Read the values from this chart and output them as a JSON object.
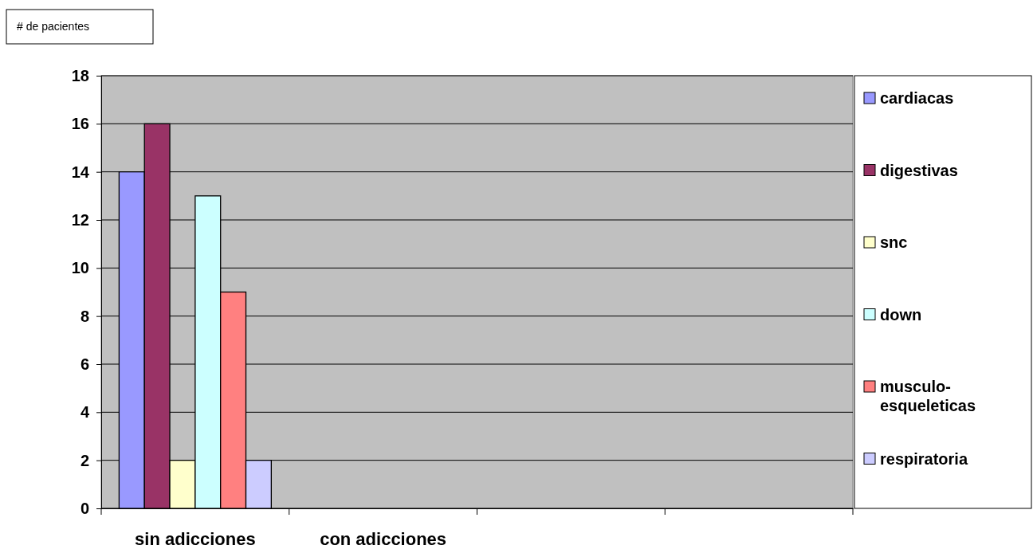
{
  "chart_data": {
    "type": "bar",
    "ylabel": "# de pacientes",
    "categories": [
      "sin adicciones",
      "con adicciones",
      null,
      null
    ],
    "series": [
      {
        "name": "cardiacas",
        "color": "#9999ff",
        "values": [
          14,
          null,
          null,
          null
        ]
      },
      {
        "name": "digestivas",
        "color": "#993366",
        "values": [
          16,
          null,
          null,
          null
        ]
      },
      {
        "name": "snc",
        "color": "#ffffcc",
        "values": [
          2,
          null,
          null,
          null
        ]
      },
      {
        "name": "down",
        "color": "#ccffff",
        "values": [
          13,
          null,
          null,
          null
        ]
      },
      {
        "name": "musculo-esqueleticas",
        "color": "#ff8080",
        "values": [
          9,
          null,
          null,
          null
        ]
      },
      {
        "name": "respiratoria",
        "color": "#ccccff",
        "values": [
          2,
          null,
          null,
          null
        ]
      }
    ],
    "ylim": [
      0,
      18
    ],
    "yticks": [
      0,
      2,
      4,
      6,
      8,
      10,
      12,
      14,
      16,
      18
    ],
    "grid": "y",
    "legend": "right"
  }
}
